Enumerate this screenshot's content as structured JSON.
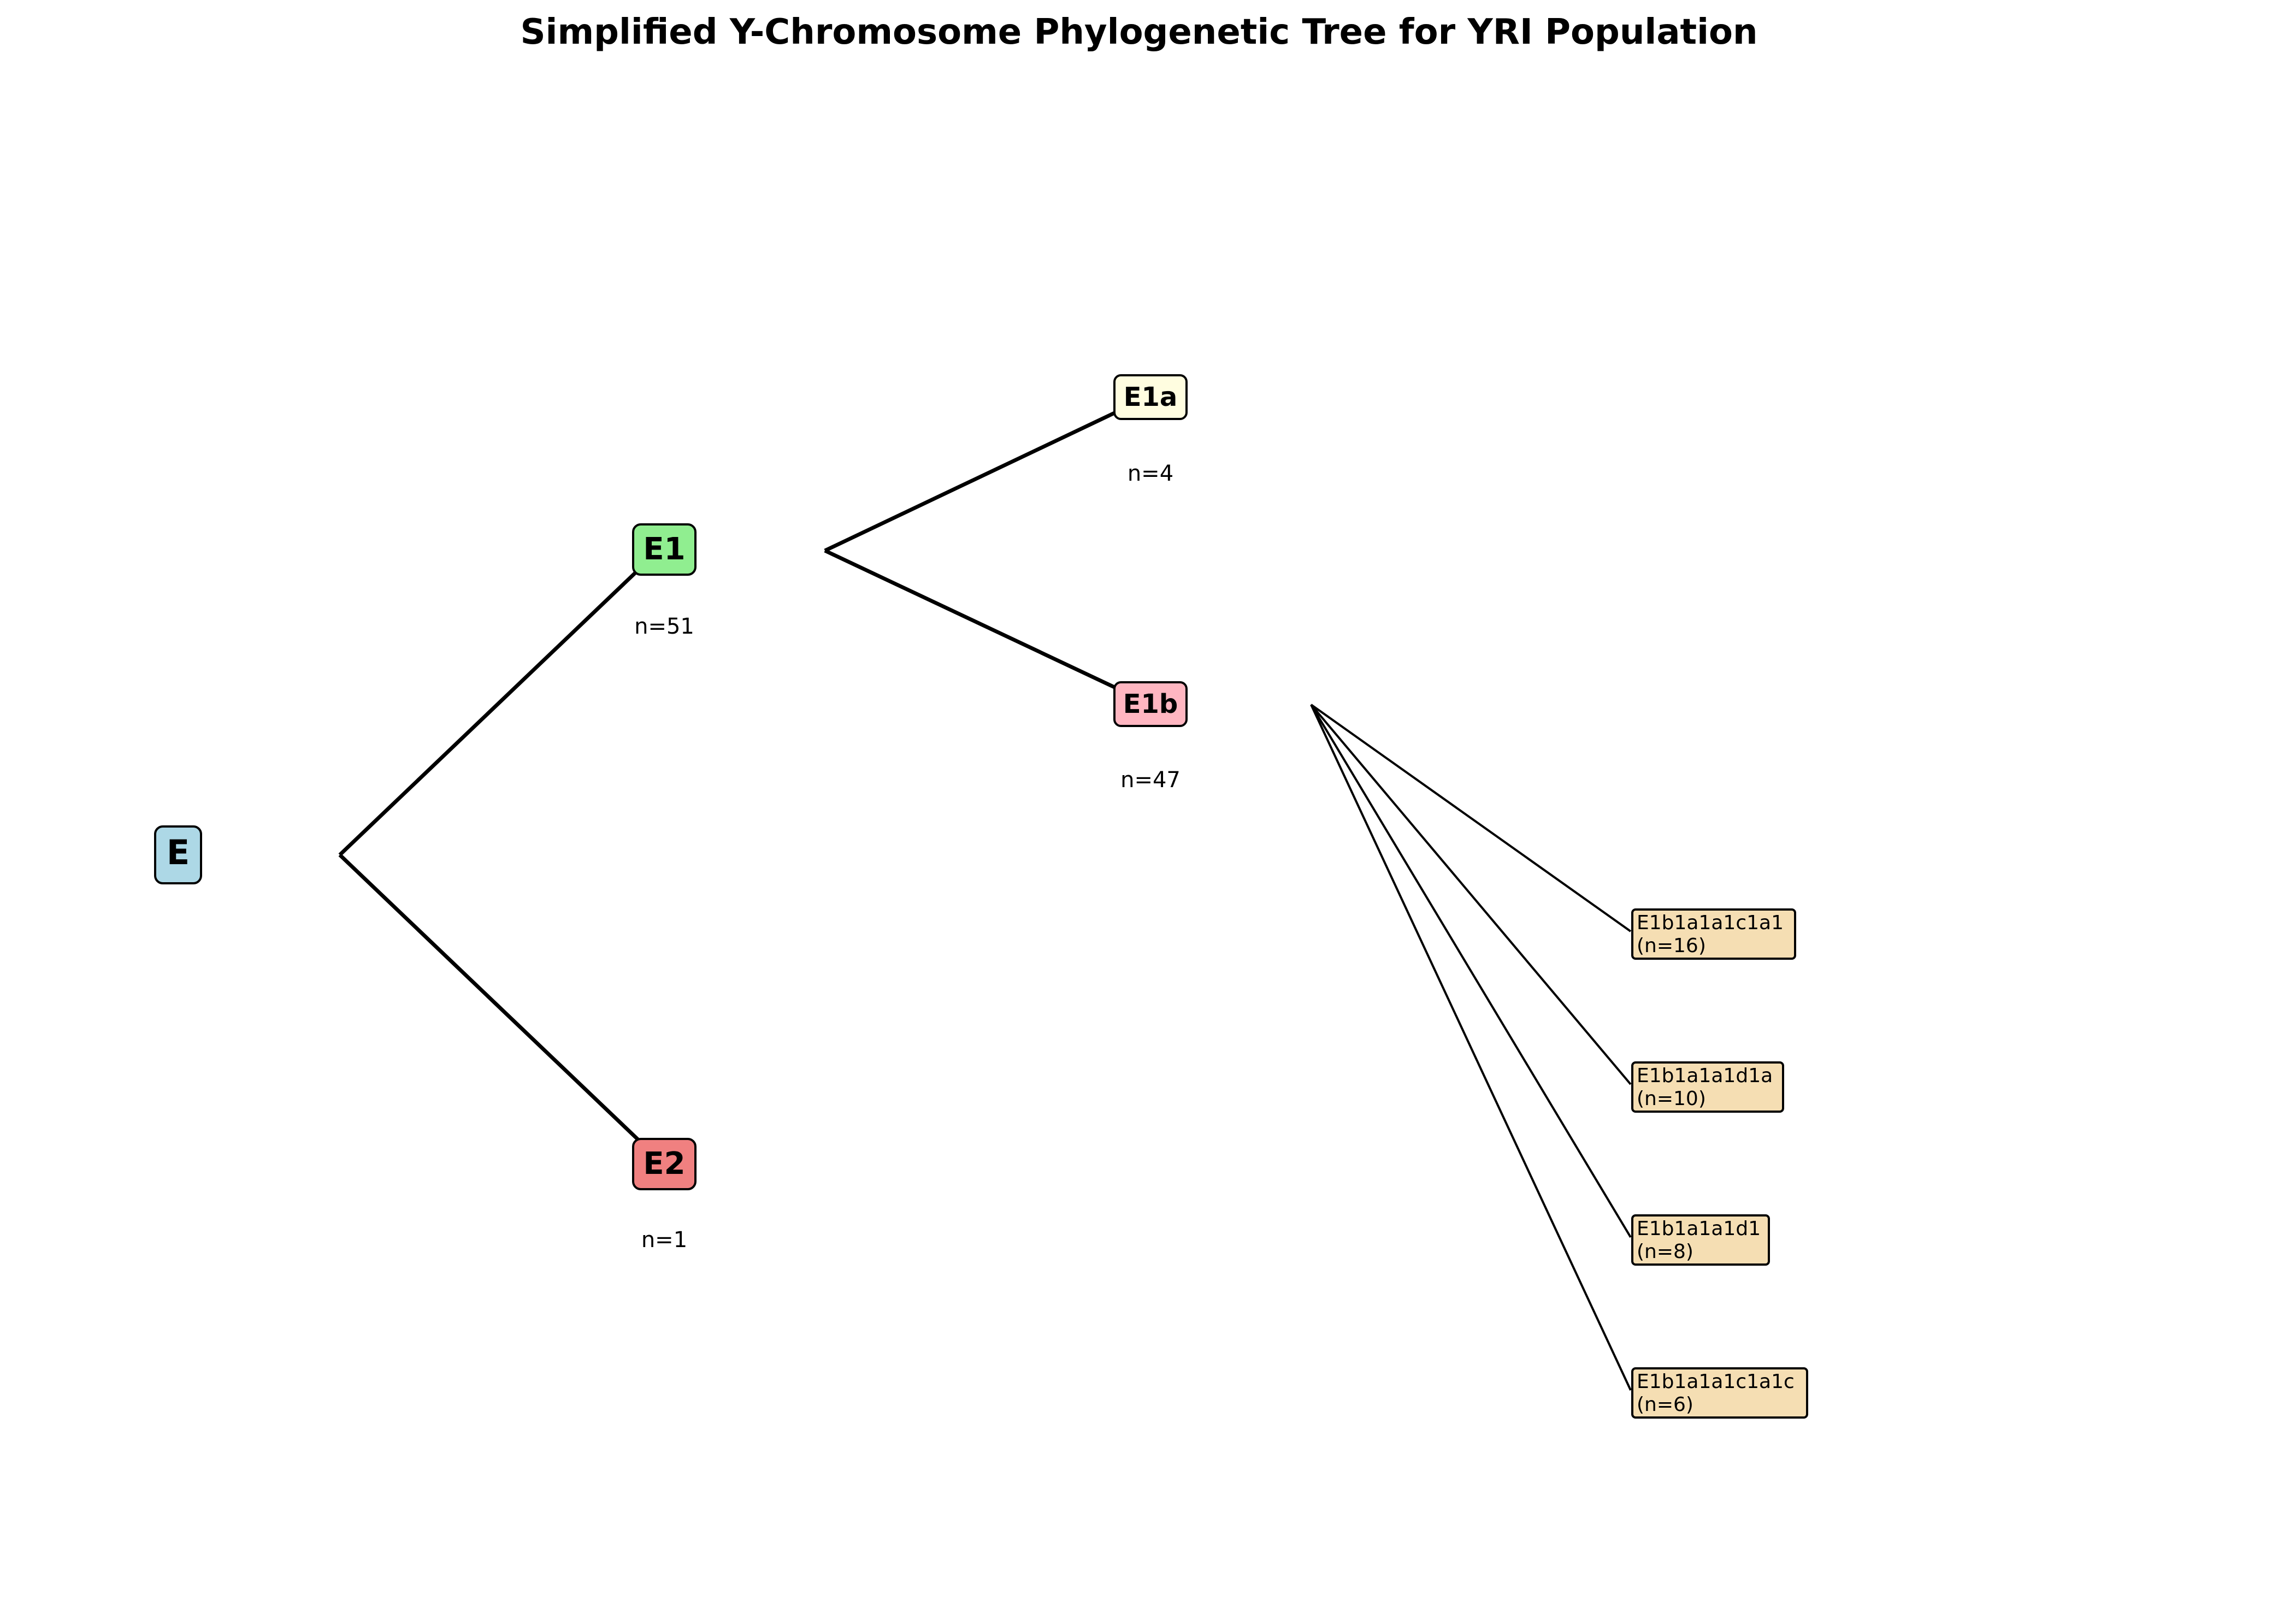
{
  "title": "Simplified Y-Chromosome Phylogenetic Tree for YRI Population",
  "nodes": {
    "E": {
      "label": "E",
      "count": "",
      "color": "#add8e6"
    },
    "E1": {
      "label": "E1",
      "count": "n=51",
      "color": "#90ee90"
    },
    "E2": {
      "label": "E2",
      "count": "n=1",
      "color": "#f08080"
    },
    "E1a": {
      "label": "E1a",
      "count": "n=4",
      "color": "#fffde0"
    },
    "E1b": {
      "label": "E1b",
      "count": "n=47",
      "color": "#ffb6c1"
    }
  },
  "leaves": [
    {
      "name": "E1b1a1a1c1a1",
      "count": "(n=16)",
      "color": "#f5deb3"
    },
    {
      "name": "E1b1a1a1d1a",
      "count": "(n=10)",
      "color": "#f5deb3"
    },
    {
      "name": "E1b1a1a1d1",
      "count": "(n=8)",
      "color": "#f5deb3"
    },
    {
      "name": "E1b1a1a1c1a1c",
      "count": "(n=6)",
      "color": "#f5deb3"
    }
  ]
}
